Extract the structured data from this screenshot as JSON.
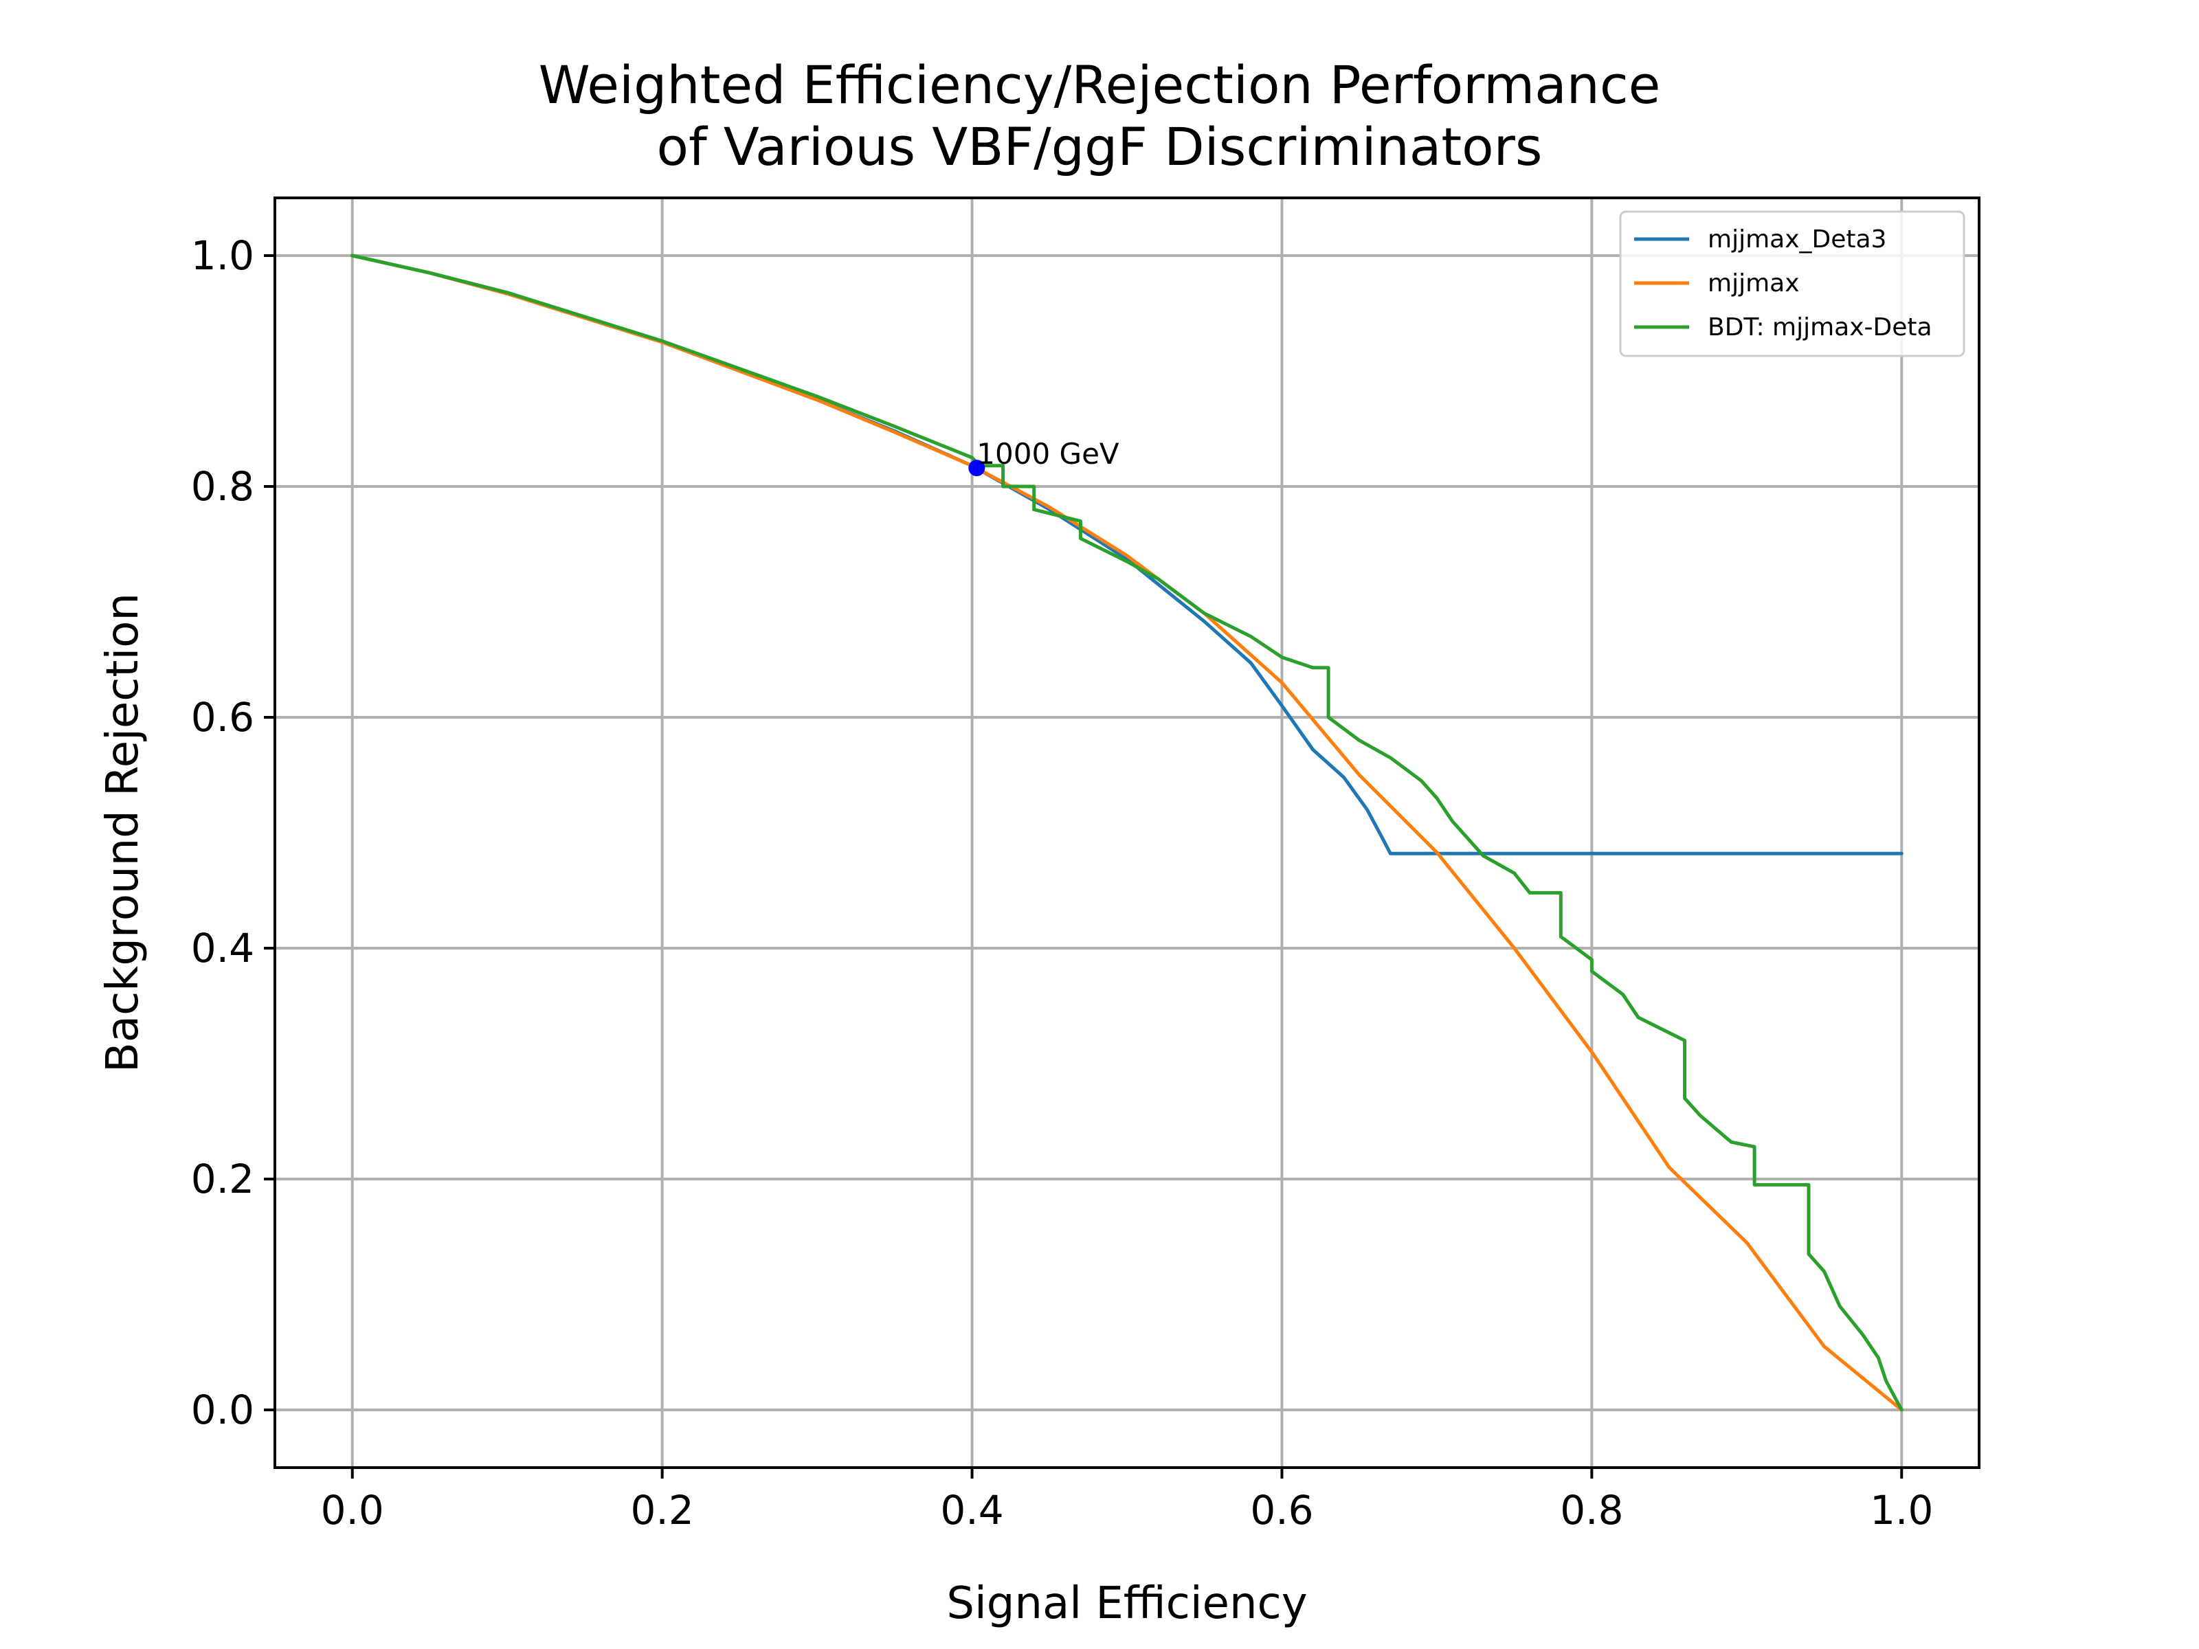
{
  "chart_data": {
    "type": "line",
    "title": [
      "Weighted Efficiency/Rejection Performance",
      "of Various VBF/ggF Discriminators"
    ],
    "xlabel": "Signal Efficiency",
    "ylabel": "Background Rejection",
    "xlim": [
      -0.05,
      1.05
    ],
    "ylim": [
      -0.05,
      1.05
    ],
    "xticks": [
      0.0,
      0.2,
      0.4,
      0.6,
      0.8,
      1.0
    ],
    "yticks": [
      0.0,
      0.2,
      0.4,
      0.6,
      0.8,
      1.0
    ],
    "xtick_labels": [
      "0.0",
      "0.2",
      "0.4",
      "0.6",
      "0.8",
      "1.0"
    ],
    "ytick_labels": [
      "0.0",
      "0.2",
      "0.4",
      "0.6",
      "0.8",
      "1.0"
    ],
    "grid": true,
    "legend_position": "top-right",
    "series": [
      {
        "name": "mjjmax_Deta3",
        "color": "#1f77b4",
        "x": [
          0.0,
          0.05,
          0.1,
          0.15,
          0.2,
          0.25,
          0.3,
          0.35,
          0.4,
          0.45,
          0.5,
          0.55,
          0.58,
          0.6,
          0.62,
          0.64,
          0.655,
          0.665,
          0.67,
          0.7,
          0.8,
          0.9,
          1.0
        ],
        "y": [
          1.0,
          0.985,
          0.967,
          0.946,
          0.925,
          0.9,
          0.875,
          0.848,
          0.818,
          0.78,
          0.737,
          0.683,
          0.647,
          0.61,
          0.572,
          0.548,
          0.52,
          0.495,
          0.482,
          0.482,
          0.482,
          0.482,
          0.482
        ]
      },
      {
        "name": "mjjmax",
        "color": "#ff7f0e",
        "x": [
          0.0,
          0.05,
          0.1,
          0.15,
          0.2,
          0.25,
          0.3,
          0.35,
          0.4,
          0.45,
          0.5,
          0.55,
          0.6,
          0.65,
          0.7,
          0.75,
          0.8,
          0.85,
          0.9,
          0.95,
          1.0
        ],
        "y": [
          1.0,
          0.985,
          0.967,
          0.946,
          0.925,
          0.9,
          0.875,
          0.847,
          0.818,
          0.782,
          0.74,
          0.69,
          0.63,
          0.55,
          0.483,
          0.4,
          0.31,
          0.21,
          0.145,
          0.055,
          0.0
        ]
      },
      {
        "name": "BDT: mjjmax-Deta",
        "color": "#2ca02c",
        "x": [
          0.0,
          0.05,
          0.1,
          0.15,
          0.2,
          0.25,
          0.3,
          0.35,
          0.4,
          0.405,
          0.42,
          0.42,
          0.44,
          0.44,
          0.47,
          0.47,
          0.5,
          0.52,
          0.55,
          0.58,
          0.6,
          0.62,
          0.63,
          0.63,
          0.65,
          0.67,
          0.69,
          0.7,
          0.71,
          0.73,
          0.75,
          0.76,
          0.78,
          0.78,
          0.8,
          0.8,
          0.82,
          0.83,
          0.86,
          0.86,
          0.87,
          0.89,
          0.905,
          0.905,
          0.94,
          0.94,
          0.95,
          0.96,
          0.975,
          0.985,
          0.99,
          1.0
        ],
        "y": [
          1.0,
          0.985,
          0.968,
          0.947,
          0.926,
          0.902,
          0.878,
          0.852,
          0.825,
          0.818,
          0.818,
          0.8,
          0.8,
          0.78,
          0.77,
          0.755,
          0.735,
          0.72,
          0.69,
          0.67,
          0.652,
          0.643,
          0.643,
          0.6,
          0.58,
          0.565,
          0.545,
          0.53,
          0.51,
          0.48,
          0.465,
          0.448,
          0.448,
          0.41,
          0.39,
          0.38,
          0.36,
          0.34,
          0.32,
          0.27,
          0.255,
          0.232,
          0.228,
          0.195,
          0.195,
          0.135,
          0.12,
          0.09,
          0.065,
          0.045,
          0.025,
          0.0
        ]
      }
    ],
    "annotations": [
      {
        "text": "1000 GeV",
        "x": 0.403,
        "y": 0.816,
        "marker_color": "#0000ff"
      }
    ]
  }
}
